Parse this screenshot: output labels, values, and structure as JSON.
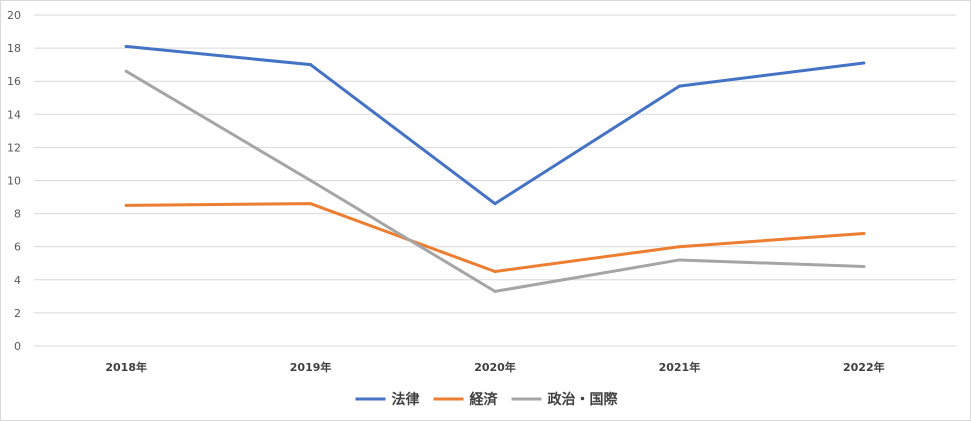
{
  "chart_data": {
    "type": "line",
    "title": "",
    "xlabel": "",
    "ylabel": "",
    "categories": [
      "2018年",
      "2019年",
      "2020年",
      "2021年",
      "2022年"
    ],
    "ylim": [
      0,
      20
    ],
    "yticks": [
      "0",
      "2",
      "4",
      "6",
      "8",
      "10",
      "12",
      "14",
      "16",
      "18",
      "20"
    ],
    "grid": true,
    "legend_position": "bottom",
    "series": [
      {
        "name": "法律",
        "color": "#4472C4",
        "values": [
          18.1,
          17.0,
          8.6,
          15.7,
          17.1
        ]
      },
      {
        "name": "経済",
        "color": "#ED7D31",
        "values": [
          8.5,
          8.6,
          4.5,
          6.0,
          6.8
        ]
      },
      {
        "name": "政治・国際",
        "color": "#A5A5A5",
        "values": [
          16.6,
          10.0,
          3.3,
          5.2,
          4.8
        ]
      }
    ]
  }
}
